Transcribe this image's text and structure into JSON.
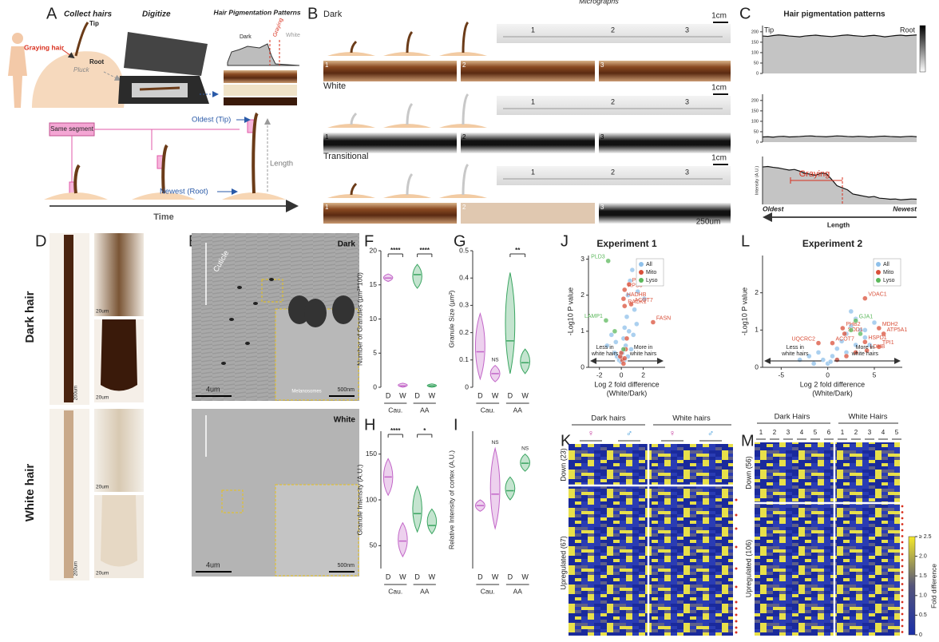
{
  "panel_labels": [
    "A",
    "B",
    "C",
    "D",
    "E",
    "F",
    "G",
    "H",
    "I",
    "J",
    "K",
    "L",
    "M"
  ],
  "panel_a": {
    "collect": "Collect hairs",
    "digitize": "Digitize",
    "patterns": "Hair Pigmentation Patterns",
    "graying_hair": "Graying hair",
    "pluck": "Pluck",
    "tip": "Tip",
    "root": "Root",
    "dark": "Dark",
    "graying": "Graying",
    "white": "White",
    "same_segment": "Same segment",
    "oldest": "Oldest (Tip)",
    "newest": "Newest (Root)",
    "length": "Length",
    "time": "Time"
  },
  "panel_b": {
    "title": "Micrographs",
    "rows": [
      {
        "name": "Dark",
        "scale": "1cm"
      },
      {
        "name": "White",
        "scale": "1cm"
      },
      {
        "name": "Transitional",
        "scale": "1cm"
      }
    ],
    "segments": [
      1,
      2,
      3
    ],
    "scale_bar": "250um"
  },
  "panel_c": {
    "title": "Hair pigmentation patterns",
    "tip": "Tip",
    "root": "Root",
    "ylabel": "Intensity (A.U.)",
    "ylim": [
      0,
      230
    ],
    "yticks": [
      0,
      50,
      100,
      150,
      200
    ],
    "color": "#c4c4c4",
    "traces": [
      [
        180,
        178,
        182,
        185,
        183,
        180,
        178,
        176,
        180,
        182,
        184,
        181,
        179,
        177,
        180,
        183,
        185,
        182,
        180,
        178,
        181,
        183,
        180,
        176,
        179,
        182,
        184,
        181,
        183,
        185
      ],
      [
        25,
        26,
        24,
        27,
        28,
        25,
        26,
        27,
        29,
        30,
        28,
        27,
        26,
        28,
        30,
        29,
        27,
        26,
        28,
        27,
        25,
        26,
        28,
        29,
        27,
        26,
        25,
        27,
        28,
        26
      ],
      [
        180,
        182,
        178,
        175,
        170,
        165,
        168,
        160,
        150,
        145,
        140,
        150,
        148,
        120,
        90,
        80,
        70,
        50,
        45,
        40,
        35,
        38,
        30,
        28,
        25,
        26,
        22,
        24,
        26,
        25
      ]
    ],
    "graying": "Graying",
    "oldest": "Oldest",
    "newest": "Newest",
    "xlabel": "Length"
  },
  "panel_d": {
    "rows": [
      "Dark hair",
      "White hair"
    ],
    "scales": [
      "200um",
      "20um",
      "20um",
      "200um",
      "20um",
      "20um"
    ]
  },
  "panel_e": {
    "rows": [
      "Dark",
      "White"
    ],
    "cuticle": "Cuticle",
    "melanosomes": "Melanosomes",
    "scales": [
      "4um",
      "500nm",
      "4um",
      "500nm"
    ]
  },
  "panel_f": {
    "ylabel": "Number of Granules (µm²*100)",
    "ylim": [
      0,
      20
    ],
    "yticks": [
      0,
      5,
      10,
      15,
      20
    ],
    "categories": [
      "D",
      "W",
      "D",
      "W"
    ],
    "groups": [
      "Cau.",
      "AA"
    ],
    "colors": [
      "#c266c8",
      "#3aa561"
    ],
    "medians": [
      16,
      0.2,
      16.5,
      0.2
    ],
    "ranges": [
      [
        15.5,
        16.6
      ],
      [
        0,
        0.6
      ],
      [
        14.5,
        18
      ],
      [
        0,
        0.5
      ]
    ],
    "significance": [
      {
        "label": "****",
        "bracket": true
      },
      {
        "label": "****",
        "bracket": true
      }
    ]
  },
  "panel_g": {
    "ylabel": "Granule Size (µm²)",
    "ylim": [
      0,
      0.5
    ],
    "yticks": [
      0,
      0.1,
      0.2,
      0.3,
      0.4,
      0.5
    ],
    "categories": [
      "D",
      "W",
      "D",
      "W"
    ],
    "groups": [
      "Cau.",
      "AA"
    ],
    "colors": [
      "#c266c8",
      "#3aa561"
    ],
    "medians": [
      0.13,
      0.05,
      0.17,
      0.09
    ],
    "ranges": [
      [
        0.03,
        0.27
      ],
      [
        0.02,
        0.08
      ],
      [
        0.05,
        0.42
      ],
      [
        0.05,
        0.14
      ]
    ],
    "significance": [
      {
        "label": "NS",
        "bracket": false
      },
      {
        "label": "**",
        "bracket": true
      }
    ]
  },
  "panel_h": {
    "ylabel": "Granule Intensity (A.U.)",
    "ylim": [
      25,
      175
    ],
    "yticks": [
      50,
      100,
      150
    ],
    "categories": [
      "D",
      "W",
      "D",
      "W"
    ],
    "groups": [
      "Cau.",
      "AA"
    ],
    "colors": [
      "#c266c8",
      "#3aa561"
    ],
    "medians": [
      125,
      55,
      85,
      72
    ],
    "ranges": [
      [
        105,
        145
      ],
      [
        38,
        75
      ],
      [
        65,
        115
      ],
      [
        63,
        90
      ]
    ],
    "significance": [
      {
        "label": "****",
        "bracket": true
      },
      {
        "label": "*",
        "bracket": true
      }
    ]
  },
  "panel_i": {
    "ylabel": "Relative Intensity of cortex (A.U.)",
    "ylim": [
      0,
      1.2
    ],
    "categories": [
      "D",
      "W",
      "D",
      "W"
    ],
    "groups": [
      "Cau.",
      "AA"
    ],
    "colors": [
      "#c266c8",
      "#3aa561"
    ],
    "medians": [
      0.55,
      0.65,
      0.68,
      0.92
    ],
    "ranges": [
      [
        0.5,
        0.6
      ],
      [
        0.35,
        1.05
      ],
      [
        0.6,
        0.8
      ],
      [
        0.85,
        1.0
      ]
    ],
    "significance": [
      {
        "label": "NS",
        "bracket": false
      },
      {
        "label": "NS",
        "bracket": false
      }
    ]
  },
  "panel_j": {
    "title": "Experiment 1",
    "xlabel": [
      "Log 2 fold difference",
      "(White/Dark)"
    ],
    "ylabel": "-Log10 P value",
    "xlim": [
      -3,
      4
    ],
    "ylim": [
      0,
      3.1
    ],
    "xticks": [
      -2,
      0,
      2
    ],
    "yticks": [
      0,
      1,
      2,
      3
    ],
    "legend_corner": "upper right",
    "less": [
      "Less in",
      "white hairs"
    ],
    "more": [
      "More in",
      "white hairs"
    ],
    "series": [
      {
        "name": "All",
        "color": "#8fc0ea",
        "x": [
          -1.3,
          -0.9,
          -0.6,
          -0.4,
          -0.2,
          0,
          0.1,
          0.2,
          0.3,
          0.4,
          0.5,
          0.6,
          0.8,
          1.0,
          1.2,
          1.5,
          1.8,
          2.1,
          0.7,
          0.9,
          -0.1,
          0.3,
          1.1,
          1.4,
          0.2,
          -0.5,
          0.6
        ],
        "y": [
          0.6,
          0.9,
          0.4,
          0.3,
          0.2,
          0.15,
          0.4,
          0.8,
          1.1,
          0.6,
          1.4,
          2.0,
          2.4,
          2.7,
          1.6,
          2.1,
          2.6,
          1.9,
          1.0,
          0.5,
          0.3,
          0.2,
          0.9,
          1.2,
          0.5,
          0.7,
          0.3
        ]
      },
      {
        "name": "Mito",
        "color": "#d9503a",
        "x": [
          0.7,
          0.3,
          0.2,
          0.9,
          0.3,
          2.9,
          0.1,
          -0.1,
          0.4,
          0.2,
          0.5,
          0,
          0.3
        ],
        "y": [
          2.3,
          2.15,
          1.9,
          1.75,
          1.7,
          1.25,
          0.2,
          0.3,
          0.5,
          0.1,
          0.8,
          0.4,
          0.25
        ],
        "labels": [
          "PRDX2",
          "RPS3",
          "HADHB",
          "ACOT7",
          "RACK1",
          "FASN",
          null,
          null,
          null,
          null,
          null,
          null,
          null
        ]
      },
      {
        "name": "Lyso",
        "color": "#5cb85c",
        "x": [
          -1.2,
          -1.4,
          -0.6,
          0.2
        ],
        "y": [
          2.95,
          1.3,
          1.0,
          0.5
        ],
        "labels": [
          "PLD3",
          "LAMP1",
          null,
          null
        ]
      }
    ]
  },
  "panel_l": {
    "title": "Experiment 2",
    "xlabel": [
      "Log 2 fold difference",
      "(White/Dark)"
    ],
    "ylabel": "-Log10 P value",
    "xlim": [
      -7,
      8
    ],
    "ylim": [
      0,
      3
    ],
    "xticks": [
      -5,
      0,
      5
    ],
    "yticks": [
      0,
      1,
      2
    ],
    "legend_corner": "upper right",
    "less": [
      "Less in",
      "white hairs"
    ],
    "more": [
      "More in",
      "white hairs"
    ],
    "series": [
      {
        "name": "All",
        "color": "#8fc0ea",
        "x": [
          -3,
          -2,
          -1,
          -0.5,
          0,
          0.5,
          1,
          1.5,
          2,
          2.5,
          3,
          3.5,
          4,
          4.5,
          5,
          2,
          1,
          0.3,
          3,
          2.5,
          -1.5,
          4
        ],
        "y": [
          0.2,
          0.3,
          0.4,
          0.2,
          0.1,
          0.3,
          0.5,
          0.7,
          0.9,
          1.1,
          1.3,
          1.0,
          0.8,
          0.6,
          1.2,
          0.4,
          0.2,
          0.15,
          0.6,
          1.5,
          0.1,
          1.0
        ]
      },
      {
        "name": "Mito",
        "color": "#d9503a",
        "x": [
          4,
          5.5,
          6,
          1.6,
          1.8,
          4,
          5.5,
          4.2,
          -1,
          0.5,
          2,
          1,
          3
        ],
        "y": [
          1.85,
          1.05,
          0.9,
          1.05,
          0.9,
          0.68,
          0.55,
          0.45,
          0.65,
          0.65,
          0.3,
          0.2,
          0.4
        ],
        "labels": [
          "VDAC1",
          "MDH2",
          "ATP5A1",
          "PHB2",
          "SOD1",
          "HSPD1",
          "TPI1",
          "LDHB",
          "UQCRC2",
          "ACOT7",
          null,
          null,
          null
        ]
      },
      {
        "name": "Lyso",
        "color": "#5cb85c",
        "x": [
          3,
          2.5,
          3.5
        ],
        "y": [
          1.25,
          1.0,
          0.9
        ],
        "labels": [
          "GJA1",
          null,
          null
        ]
      }
    ]
  },
  "panel_k": {
    "groups": [
      "Dark hairs",
      "White hairs"
    ],
    "sexes": [
      "♀",
      "♂"
    ],
    "rows": [
      "Down (23)",
      "Upregulated (67)"
    ]
  },
  "panel_m": {
    "groups": [
      "Dark Hairs",
      "White Hairs"
    ],
    "dark_samples": [
      1,
      2,
      3,
      4,
      5,
      6
    ],
    "white_samples": [
      1,
      2,
      3,
      4,
      5
    ],
    "rows": [
      "Down (56)",
      "Upregulated (106)"
    ],
    "colorbar": {
      "label": "Fold difference",
      "lim": [
        0,
        2.5
      ],
      "ticks": [
        0,
        0.5,
        {
          "value": 1,
          "label": "1.0"
        },
        1.5,
        {
          "value": 2,
          "label": "2.0"
        },
        {
          "value": 2.5,
          "label": "≥ 2.5"
        }
      ]
    }
  }
}
